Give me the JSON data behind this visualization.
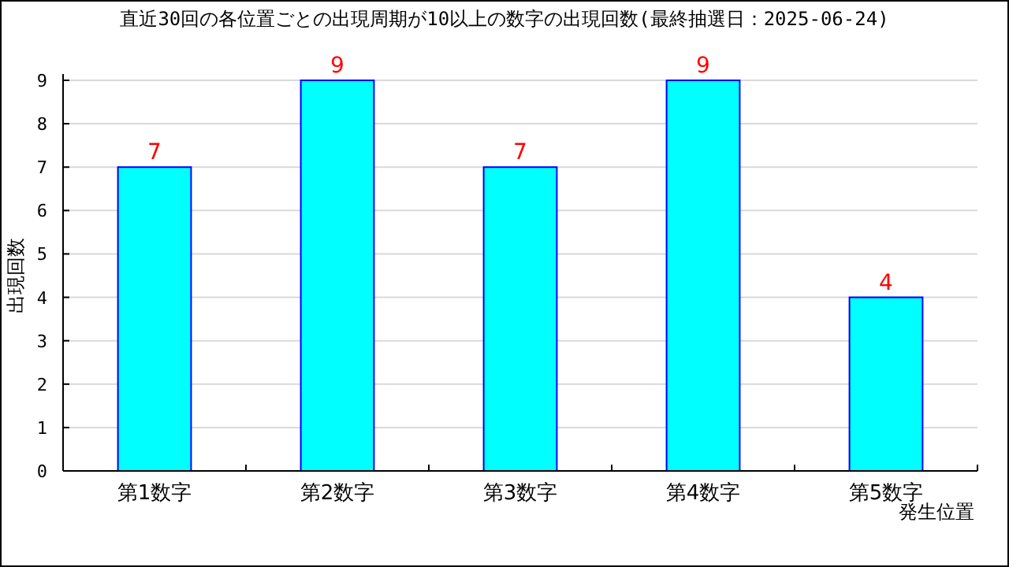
{
  "chart_data": {
    "type": "bar",
    "title": "直近30回の各位置ごとの出現周期が10以上の数字の出現回数(最終抽選日：2025-06-24)",
    "xlabel": "発生位置",
    "ylabel": "出現回数",
    "categories": [
      "第1数字",
      "第2数字",
      "第3数字",
      "第4数字",
      "第5数字"
    ],
    "values": [
      7,
      9,
      7,
      9,
      4
    ],
    "color": "#00ffff",
    "ylim": [
      0,
      9
    ],
    "yticks": [
      0,
      1,
      2,
      3,
      4,
      5,
      6,
      7,
      8,
      9
    ],
    "grid": "y",
    "data_labels": true
  }
}
